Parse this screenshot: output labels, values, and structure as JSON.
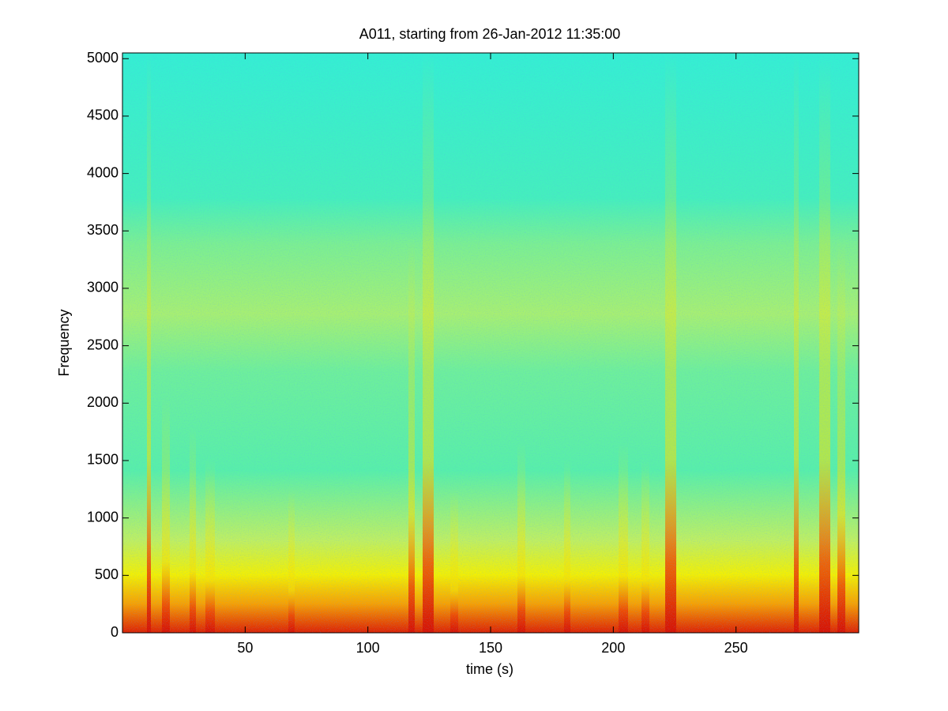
{
  "chart_data": {
    "type": "spectrogram",
    "title": "A011, starting from 26-Jan-2012 11:35:00",
    "x_label": "time (s)",
    "y_label": "Frequency",
    "xlim": [
      0,
      300
    ],
    "xticks": [
      50,
      100,
      150,
      200,
      250
    ],
    "ylim": [
      0,
      5050
    ],
    "yticks": [
      0,
      500,
      1000,
      1500,
      2000,
      2500,
      3000,
      3500,
      4000,
      4500,
      5000
    ]
  }
}
